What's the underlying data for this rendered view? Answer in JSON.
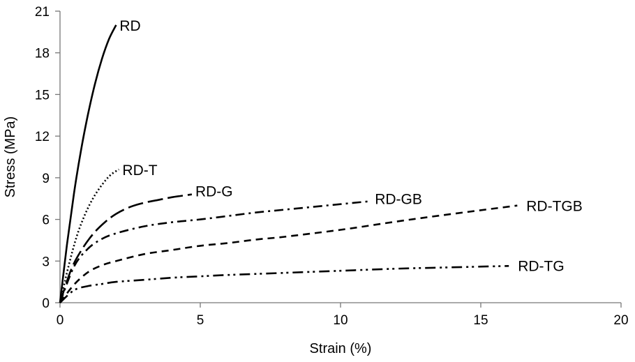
{
  "chart_data": {
    "type": "line",
    "title": "",
    "xlabel": "Strain (%)",
    "ylabel": "Stress (MPa)",
    "xlim": [
      0,
      20
    ],
    "ylim": [
      0,
      21
    ],
    "xticks": [
      0,
      5,
      10,
      15,
      20
    ],
    "yticks": [
      0,
      3,
      6,
      9,
      12,
      15,
      18,
      21
    ],
    "grid": false,
    "legend": "labels at line ends",
    "series": [
      {
        "name": "RD",
        "style": "solid",
        "x": [
          0,
          0.25,
          0.5,
          0.75,
          1.0,
          1.25,
          1.5,
          1.75,
          2.0
        ],
        "y": [
          0,
          4.2,
          7.9,
          11.0,
          13.6,
          15.8,
          17.6,
          19.0,
          20.0
        ]
      },
      {
        "name": "RD-T",
        "style": "dotted",
        "x": [
          0,
          0.3,
          0.6,
          0.9,
          1.2,
          1.5,
          1.8,
          2.1
        ],
        "y": [
          0,
          2.6,
          4.8,
          6.4,
          7.6,
          8.5,
          9.2,
          9.6
        ]
      },
      {
        "name": "RD-G",
        "style": "long-dash",
        "x": [
          0,
          0.4,
          0.8,
          1.2,
          1.6,
          2.0,
          2.5,
          3.0,
          3.5,
          4.0,
          4.7
        ],
        "y": [
          0,
          2.4,
          3.9,
          5.0,
          5.8,
          6.4,
          6.9,
          7.2,
          7.4,
          7.6,
          7.8
        ]
      },
      {
        "name": "RD-GB",
        "style": "dash-dot",
        "x": [
          0,
          0.5,
          1.0,
          1.5,
          2.0,
          3.0,
          4.0,
          5.0,
          6.0,
          7.0,
          8.0,
          9.0,
          10.0,
          11.0
        ],
        "y": [
          0,
          2.6,
          3.9,
          4.6,
          5.0,
          5.5,
          5.8,
          6.0,
          6.25,
          6.5,
          6.7,
          6.9,
          7.1,
          7.3
        ]
      },
      {
        "name": "RD-TGB",
        "style": "dashed",
        "x": [
          0,
          0.5,
          1.0,
          1.5,
          2.0,
          3.0,
          4.0,
          5.0,
          6.0,
          7.0,
          8.0,
          10.0,
          12.0,
          14.0,
          16.3
        ],
        "y": [
          0,
          1.3,
          2.2,
          2.7,
          3.0,
          3.5,
          3.8,
          4.1,
          4.3,
          4.55,
          4.75,
          5.25,
          5.85,
          6.4,
          7.0
        ]
      },
      {
        "name": "RD-TG",
        "style": "dash-dot-dot",
        "x": [
          0,
          0.5,
          1.0,
          1.5,
          2.0,
          3.0,
          4.0,
          5.0,
          6.0,
          8.0,
          10.0,
          12.0,
          14.0,
          16.0
        ],
        "y": [
          0,
          0.9,
          1.2,
          1.35,
          1.5,
          1.65,
          1.8,
          1.9,
          2.0,
          2.15,
          2.3,
          2.45,
          2.55,
          2.65
        ]
      }
    ]
  }
}
